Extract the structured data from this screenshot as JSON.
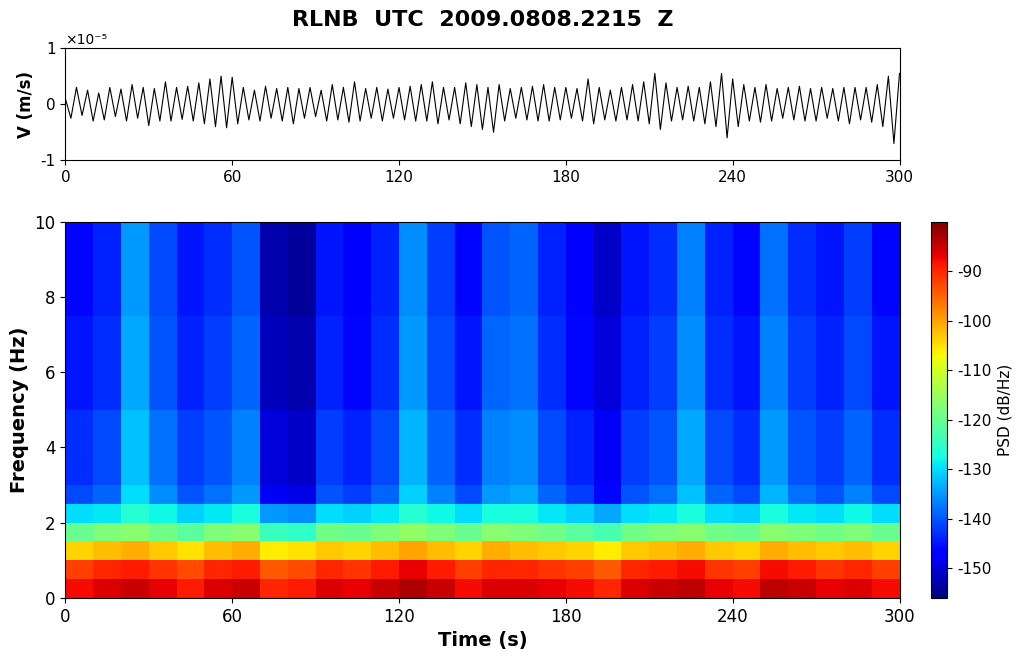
{
  "chart_data": [
    {
      "type": "line",
      "title": "RLNB  UTC  2009.0808.2215  Z",
      "y_label": "V (m/s)",
      "y_multiplier_text": "×10⁻⁵",
      "color": "#000000",
      "x": [
        0,
        2,
        4,
        6,
        8,
        10,
        12,
        14,
        16,
        18,
        20,
        22,
        24,
        26,
        28,
        30,
        32,
        34,
        36,
        38,
        40,
        42,
        44,
        46,
        48,
        50,
        52,
        54,
        56,
        58,
        60,
        62,
        64,
        66,
        68,
        70,
        72,
        74,
        76,
        78,
        80,
        82,
        84,
        86,
        88,
        90,
        92,
        94,
        96,
        98,
        100,
        102,
        104,
        106,
        108,
        110,
        112,
        114,
        116,
        118,
        120,
        122,
        124,
        126,
        128,
        130,
        132,
        134,
        136,
        138,
        140,
        142,
        144,
        146,
        148,
        150,
        152,
        154,
        156,
        158,
        160,
        162,
        164,
        166,
        168,
        170,
        172,
        174,
        176,
        178,
        180,
        182,
        184,
        186,
        188,
        190,
        192,
        194,
        196,
        198,
        200,
        202,
        204,
        206,
        208,
        210,
        212,
        214,
        216,
        218,
        220,
        222,
        224,
        226,
        228,
        230,
        232,
        234,
        236,
        238,
        240,
        242,
        244,
        246,
        248,
        250,
        252,
        254,
        256,
        258,
        260,
        262,
        264,
        266,
        268,
        270,
        272,
        274,
        276,
        278,
        280,
        282,
        284,
        286,
        288,
        290,
        292,
        294,
        296,
        298,
        300
      ],
      "values": [
        0.1,
        -0.25,
        0.3,
        -0.2,
        0.25,
        -0.3,
        0.2,
        -0.28,
        0.3,
        -0.22,
        0.27,
        -0.3,
        0.35,
        -0.25,
        0.3,
        -0.38,
        0.28,
        -0.3,
        0.4,
        -0.3,
        0.3,
        -0.27,
        0.32,
        -0.3,
        0.38,
        -0.35,
        0.45,
        -0.4,
        0.5,
        -0.42,
        0.48,
        -0.35,
        0.3,
        -0.28,
        0.25,
        -0.3,
        0.32,
        -0.25,
        0.28,
        -0.3,
        0.3,
        -0.35,
        0.28,
        -0.25,
        0.3,
        -0.22,
        0.25,
        -0.3,
        0.35,
        -0.28,
        0.3,
        -0.32,
        0.4,
        -0.3,
        0.28,
        -0.25,
        0.3,
        -0.3,
        0.27,
        -0.25,
        0.3,
        -0.28,
        0.32,
        -0.3,
        0.35,
        -0.3,
        0.4,
        -0.35,
        0.3,
        -0.28,
        0.3,
        -0.35,
        0.38,
        -0.4,
        0.35,
        -0.45,
        0.3,
        -0.5,
        0.35,
        -0.3,
        0.28,
        -0.25,
        0.3,
        -0.28,
        0.32,
        -0.3,
        0.35,
        -0.3,
        0.3,
        -0.28,
        0.3,
        -0.25,
        0.28,
        -0.3,
        0.45,
        -0.35,
        0.3,
        -0.28,
        0.25,
        -0.3,
        0.3,
        -0.28,
        0.35,
        -0.3,
        0.4,
        -0.35,
        0.55,
        -0.45,
        0.38,
        -0.3,
        0.3,
        -0.28,
        0.32,
        -0.3,
        0.3,
        -0.35,
        0.4,
        -0.4,
        0.55,
        -0.6,
        0.45,
        -0.4,
        0.35,
        -0.3,
        0.3,
        -0.32,
        0.35,
        -0.3,
        0.28,
        -0.25,
        0.3,
        -0.28,
        0.32,
        -0.3,
        0.28,
        -0.3,
        0.3,
        -0.25,
        0.28,
        -0.3,
        0.3,
        -0.35,
        0.3,
        -0.28,
        0.3,
        -0.32,
        0.35,
        -0.4,
        0.5,
        -0.7,
        0.55
      ],
      "xlim": [
        0,
        300
      ],
      "xticks": [
        0,
        60,
        120,
        180,
        240,
        300
      ],
      "ylim": [
        -1,
        1
      ],
      "yticks": [
        -1,
        0,
        1
      ]
    },
    {
      "type": "heatmap",
      "x_label": "Time (s)",
      "y_label": "Frequency (Hz)",
      "colorbar_label": "PSD (dB/Hz)",
      "time_edges": [
        0,
        10,
        20,
        30,
        40,
        50,
        60,
        70,
        80,
        90,
        100,
        110,
        120,
        130,
        140,
        150,
        160,
        170,
        180,
        190,
        200,
        210,
        220,
        230,
        240,
        250,
        260,
        270,
        280,
        290,
        300
      ],
      "freq_edges": [
        0,
        0.5,
        1,
        1.5,
        2,
        2.5,
        3,
        3.5,
        4,
        4.5,
        5,
        5.5,
        6,
        6.5,
        7,
        7.5,
        8,
        8.5,
        9,
        9.5,
        10
      ],
      "cells": [
        [
          -88,
          -86,
          -85,
          -87,
          -89,
          -86,
          -85,
          -90,
          -89,
          -86,
          -87,
          -85,
          -83,
          -85,
          -88,
          -86,
          -86,
          -87,
          -88,
          -90,
          -86,
          -85,
          -84,
          -87,
          -88,
          -84,
          -85,
          -87,
          -86,
          -88
        ],
        [
          -92,
          -90,
          -89,
          -91,
          -93,
          -90,
          -89,
          -94,
          -93,
          -90,
          -91,
          -89,
          -87,
          -89,
          -92,
          -90,
          -90,
          -91,
          -92,
          -94,
          -90,
          -89,
          -88,
          -91,
          -92,
          -88,
          -89,
          -91,
          -90,
          -92
        ],
        [
          -104,
          -102,
          -101,
          -103,
          -105,
          -102,
          -101,
          -106,
          -105,
          -103,
          -104,
          -102,
          -100,
          -102,
          -104,
          -101,
          -102,
          -103,
          -104,
          -106,
          -103,
          -102,
          -101,
          -103,
          -104,
          -101,
          -102,
          -103,
          -102,
          -104
        ],
        [
          -120,
          -118,
          -117,
          -119,
          -121,
          -118,
          -117,
          -124,
          -125,
          -119,
          -120,
          -118,
          -116,
          -118,
          -120,
          -117,
          -118,
          -119,
          -121,
          -123,
          -119,
          -118,
          -117,
          -119,
          -120,
          -117,
          -118,
          -119,
          -118,
          -120
        ],
        [
          -130,
          -129,
          -126,
          -128,
          -131,
          -129,
          -127,
          -135,
          -136,
          -130,
          -131,
          -129,
          -126,
          -128,
          -130,
          -127,
          -127,
          -129,
          -131,
          -134,
          -130,
          -129,
          -127,
          -130,
          -131,
          -127,
          -129,
          -130,
          -128,
          -130
        ],
        [
          -141,
          -139,
          -130,
          -136,
          -140,
          -138,
          -135,
          -148,
          -149,
          -140,
          -142,
          -139,
          -131,
          -137,
          -141,
          -135,
          -134,
          -139,
          -142,
          -146,
          -140,
          -138,
          -132,
          -139,
          -141,
          -133,
          -138,
          -140,
          -137,
          -141
        ],
        [
          -143,
          -141,
          -132,
          -138,
          -142,
          -140,
          -137,
          -150,
          -151,
          -142,
          -144,
          -141,
          -133,
          -139,
          -143,
          -137,
          -136,
          -141,
          -144,
          -148,
          -142,
          -140,
          -134,
          -141,
          -143,
          -135,
          -140,
          -142,
          -139,
          -143
        ],
        [
          -143,
          -141,
          -132,
          -138,
          -142,
          -140,
          -137,
          -150,
          -151,
          -142,
          -144,
          -141,
          -133,
          -139,
          -143,
          -137,
          -136,
          -141,
          -144,
          -148,
          -142,
          -140,
          -134,
          -141,
          -143,
          -135,
          -140,
          -142,
          -139,
          -143
        ],
        [
          -143,
          -141,
          -132,
          -138,
          -142,
          -140,
          -137,
          -150,
          -151,
          -142,
          -144,
          -141,
          -133,
          -139,
          -143,
          -137,
          -136,
          -141,
          -144,
          -148,
          -142,
          -140,
          -134,
          -141,
          -143,
          -135,
          -140,
          -142,
          -139,
          -143
        ],
        [
          -143,
          -141,
          -132,
          -138,
          -142,
          -140,
          -137,
          -150,
          -151,
          -142,
          -144,
          -141,
          -133,
          -139,
          -143,
          -137,
          -136,
          -141,
          -144,
          -148,
          -142,
          -140,
          -134,
          -141,
          -143,
          -135,
          -140,
          -142,
          -139,
          -143
        ],
        [
          -145,
          -143,
          -134,
          -140,
          -144,
          -142,
          -139,
          -152,
          -153,
          -144,
          -146,
          -143,
          -135,
          -141,
          -145,
          -139,
          -138,
          -143,
          -146,
          -150,
          -144,
          -142,
          -136,
          -143,
          -145,
          -137,
          -142,
          -144,
          -141,
          -145
        ],
        [
          -145,
          -143,
          -134,
          -140,
          -144,
          -142,
          -139,
          -152,
          -153,
          -144,
          -146,
          -143,
          -135,
          -141,
          -145,
          -139,
          -138,
          -143,
          -146,
          -150,
          -144,
          -142,
          -136,
          -143,
          -145,
          -137,
          -142,
          -144,
          -141,
          -145
        ],
        [
          -145,
          -143,
          -134,
          -140,
          -144,
          -142,
          -139,
          -152,
          -153,
          -144,
          -146,
          -143,
          -135,
          -141,
          -145,
          -139,
          -138,
          -143,
          -146,
          -150,
          -144,
          -142,
          -136,
          -143,
          -145,
          -137,
          -142,
          -144,
          -141,
          -145
        ],
        [
          -145,
          -143,
          -134,
          -140,
          -144,
          -142,
          -139,
          -152,
          -153,
          -144,
          -146,
          -143,
          -135,
          -141,
          -145,
          -139,
          -138,
          -143,
          -146,
          -150,
          -144,
          -142,
          -136,
          -143,
          -145,
          -137,
          -142,
          -144,
          -141,
          -145
        ],
        [
          -145,
          -143,
          -134,
          -140,
          -144,
          -142,
          -139,
          -152,
          -153,
          -144,
          -146,
          -143,
          -135,
          -141,
          -145,
          -139,
          -138,
          -143,
          -146,
          -150,
          -144,
          -142,
          -136,
          -143,
          -145,
          -137,
          -142,
          -144,
          -141,
          -145
        ],
        [
          -146,
          -144,
          -135,
          -141,
          -145,
          -143,
          -140,
          -153,
          -154,
          -145,
          -147,
          -144,
          -136,
          -142,
          -146,
          -140,
          -139,
          -144,
          -147,
          -151,
          -145,
          -143,
          -137,
          -144,
          -146,
          -138,
          -143,
          -145,
          -142,
          -146
        ],
        [
          -146,
          -144,
          -135,
          -141,
          -145,
          -143,
          -140,
          -153,
          -154,
          -145,
          -147,
          -144,
          -136,
          -142,
          -146,
          -140,
          -139,
          -144,
          -147,
          -151,
          -145,
          -143,
          -137,
          -144,
          -146,
          -138,
          -143,
          -145,
          -142,
          -146
        ],
        [
          -146,
          -144,
          -135,
          -141,
          -145,
          -143,
          -140,
          -153,
          -154,
          -145,
          -147,
          -144,
          -136,
          -142,
          -146,
          -140,
          -139,
          -144,
          -147,
          -151,
          -145,
          -143,
          -137,
          -144,
          -146,
          -138,
          -143,
          -145,
          -142,
          -146
        ],
        [
          -146,
          -144,
          -135,
          -141,
          -145,
          -143,
          -140,
          -153,
          -154,
          -145,
          -147,
          -144,
          -136,
          -142,
          -146,
          -140,
          -139,
          -144,
          -147,
          -151,
          -145,
          -143,
          -137,
          -144,
          -146,
          -138,
          -143,
          -145,
          -142,
          -146
        ],
        [
          -146,
          -144,
          -135,
          -141,
          -145,
          -143,
          -140,
          -153,
          -154,
          -145,
          -147,
          -144,
          -136,
          -142,
          -146,
          -140,
          -139,
          -144,
          -147,
          -151,
          -145,
          -143,
          -137,
          -144,
          -146,
          -138,
          -143,
          -145,
          -142,
          -146
        ]
      ],
      "xlim": [
        0,
        300
      ],
      "xticks": [
        0,
        60,
        120,
        180,
        240,
        300
      ],
      "ylim": [
        0,
        10
      ],
      "yticks": [
        0,
        2,
        4,
        6,
        8,
        10
      ],
      "colorbar_range": [
        -156,
        -80
      ],
      "colorbar_ticks": [
        -150,
        -140,
        -130,
        -120,
        -110,
        -100,
        -90
      ]
    }
  ]
}
